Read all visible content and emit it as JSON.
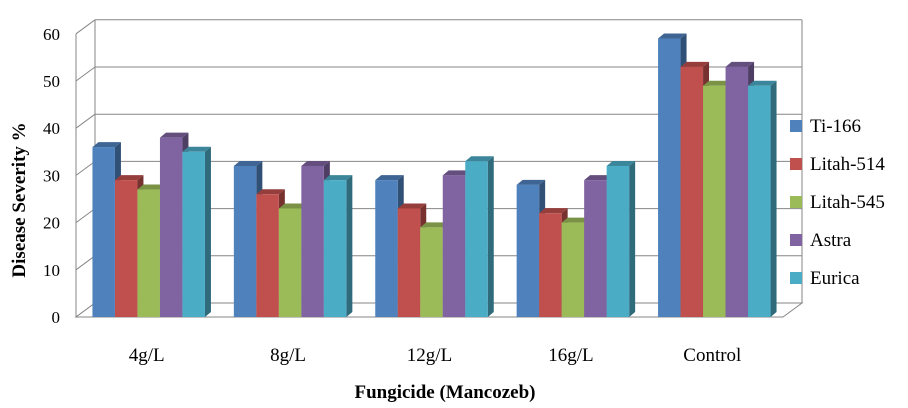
{
  "chart_data": {
    "type": "bar",
    "style": "3d-clustered-column",
    "categories": [
      "4g/L",
      "8g/L",
      "12g/L",
      "16g/L",
      "Control"
    ],
    "series": [
      {
        "name": "Ti-166",
        "color": "#4F81BD",
        "values": [
          36,
          32,
          29,
          28,
          59
        ]
      },
      {
        "name": "Litah-514",
        "color": "#C0504D",
        "values": [
          29,
          26,
          23,
          22,
          53
        ]
      },
      {
        "name": "Litah-545",
        "color": "#9BBB59",
        "values": [
          27,
          23,
          19,
          20,
          49
        ]
      },
      {
        "name": "Astra",
        "color": "#8064A2",
        "values": [
          38,
          32,
          30,
          29,
          53
        ]
      },
      {
        "name": "Eurica",
        "color": "#4BACC6",
        "values": [
          35,
          29,
          33,
          32,
          49
        ]
      }
    ],
    "xlabel": "Fungicide (Mancozeb)",
    "ylabel": "Disease Severity   %",
    "ylim": [
      0,
      60
    ],
    "yticks": [
      0,
      10,
      20,
      30,
      40,
      50,
      60
    ],
    "grid": true,
    "legend": "right"
  }
}
